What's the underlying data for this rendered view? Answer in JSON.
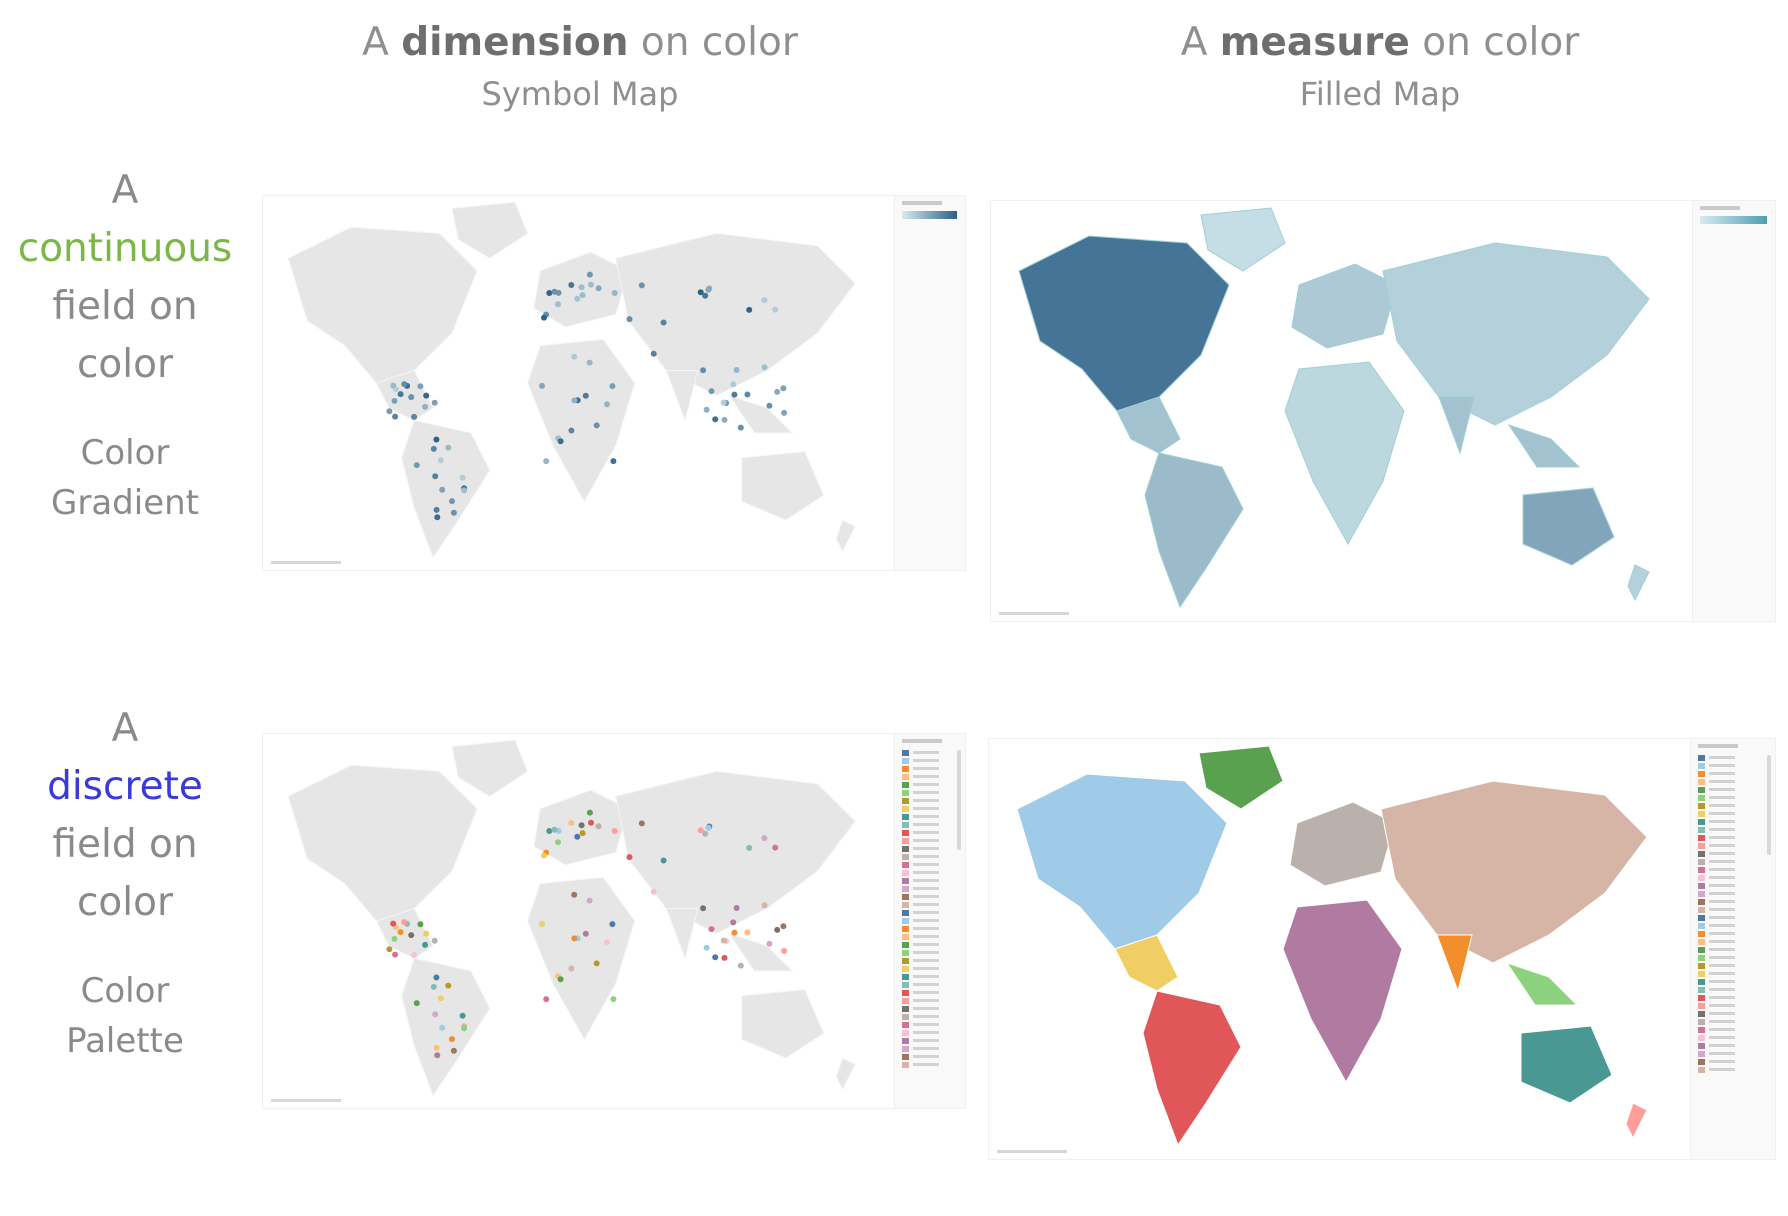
{
  "columns": [
    {
      "prefix": "A ",
      "bold": "dimension",
      "suffix": " on color",
      "subtitle": "Symbol Map"
    },
    {
      "prefix": "A ",
      "bold": "measure",
      "suffix": " on color",
      "subtitle": "Filled Map"
    }
  ],
  "rows": [
    {
      "line1": "A",
      "keyword": "continuous",
      "line3": "field on",
      "line4": "color",
      "type1": "Color",
      "type2": "Gradient",
      "keyword_color": "#7ab648"
    },
    {
      "line1": "A",
      "keyword": "discrete",
      "line3": "field on",
      "line4": "color",
      "type1": "Color",
      "type2": "Palette",
      "keyword_color": "#3a3ad6"
    }
  ],
  "colors": {
    "gradient_light": "#d6ecef",
    "gradient_dark": "#2c5f86",
    "land": "#e6e6e6",
    "ocean": "#ffffff",
    "palette": [
      "#4e79a7",
      "#a0cbe8",
      "#f28e2b",
      "#ffbe7d",
      "#59a14f",
      "#8cd17d",
      "#b6992d",
      "#f1ce63",
      "#499894",
      "#86bcb6",
      "#e15759",
      "#ff9d9a",
      "#79706e",
      "#bab0ac",
      "#d37295",
      "#fabfd2",
      "#b07aa1",
      "#d4a6c8",
      "#9d7660",
      "#d7b5a6"
    ]
  }
}
